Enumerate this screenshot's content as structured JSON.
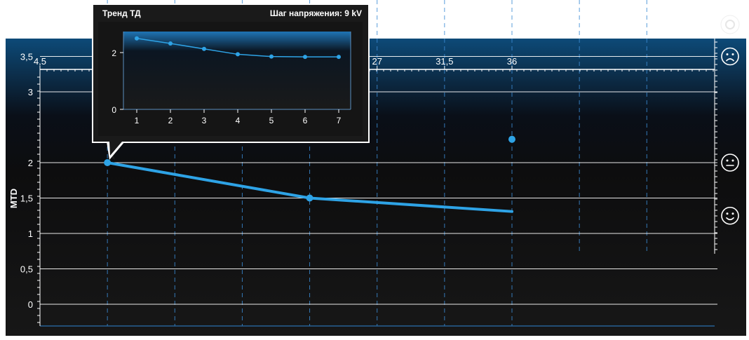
{
  "chart_data": [
    {
      "type": "line",
      "ylabel": "MTD",
      "xlim": [
        0,
        45
      ],
      "ylim": [
        -0.3,
        3.8
      ],
      "x_ticks": [
        {
          "value": 4.5,
          "label": "4,5"
        },
        {
          "value": 27,
          "label": "27"
        },
        {
          "value": 31.5,
          "label": "31,5"
        },
        {
          "value": 36,
          "label": "36"
        }
      ],
      "y_ticks": [
        {
          "value": 3.5,
          "label": "3,5"
        },
        {
          "value": 3,
          "label": "3"
        },
        {
          "value": 2,
          "label": "2"
        },
        {
          "value": 1.5,
          "label": "1,5"
        },
        {
          "value": 1,
          "label": "1"
        },
        {
          "value": 0.5,
          "label": "0,5"
        },
        {
          "value": 0,
          "label": "0"
        }
      ],
      "vertical_guides_x": [
        9,
        13.5,
        18,
        22.5,
        27,
        31.5,
        36,
        40.5,
        45
      ],
      "grid": true,
      "series": [
        {
          "color": "#2ea3e6",
          "x": [
            9,
            22.5,
            36
          ],
          "y": [
            2.0,
            1.5,
            1.31
          ],
          "markers_at": [
            9,
            22.5
          ]
        }
      ],
      "extra_points": [
        {
          "x": 36,
          "y": 2.33,
          "color": "#2ea3e6"
        }
      ],
      "indicators": [
        {
          "icon": "frown-face-icon",
          "y": 3.5
        },
        {
          "icon": "neutral-face-icon",
          "y": 2.0
        },
        {
          "icon": "smile-face-icon",
          "y": 1.25
        }
      ]
    },
    {
      "type": "line",
      "title": "Тренд ТД",
      "subtitle": "Шаг напряжения: 9 kV",
      "categories": [
        "1",
        "2",
        "3",
        "4",
        "5",
        "6",
        "7"
      ],
      "y_ticks": [
        {
          "value": 2,
          "label": "2"
        },
        {
          "value": 0,
          "label": "0"
        }
      ],
      "ylim": [
        0,
        2.75
      ],
      "series": [
        {
          "color": "#2ea3e6",
          "values": [
            2.5,
            2.32,
            2.13,
            1.94,
            1.86,
            1.85,
            1.85
          ]
        }
      ]
    }
  ],
  "colors": {
    "background_top": "#0d4a78",
    "background_bottom": "#141414",
    "accent": "#2ea3e6",
    "grid": "#ffffff"
  }
}
